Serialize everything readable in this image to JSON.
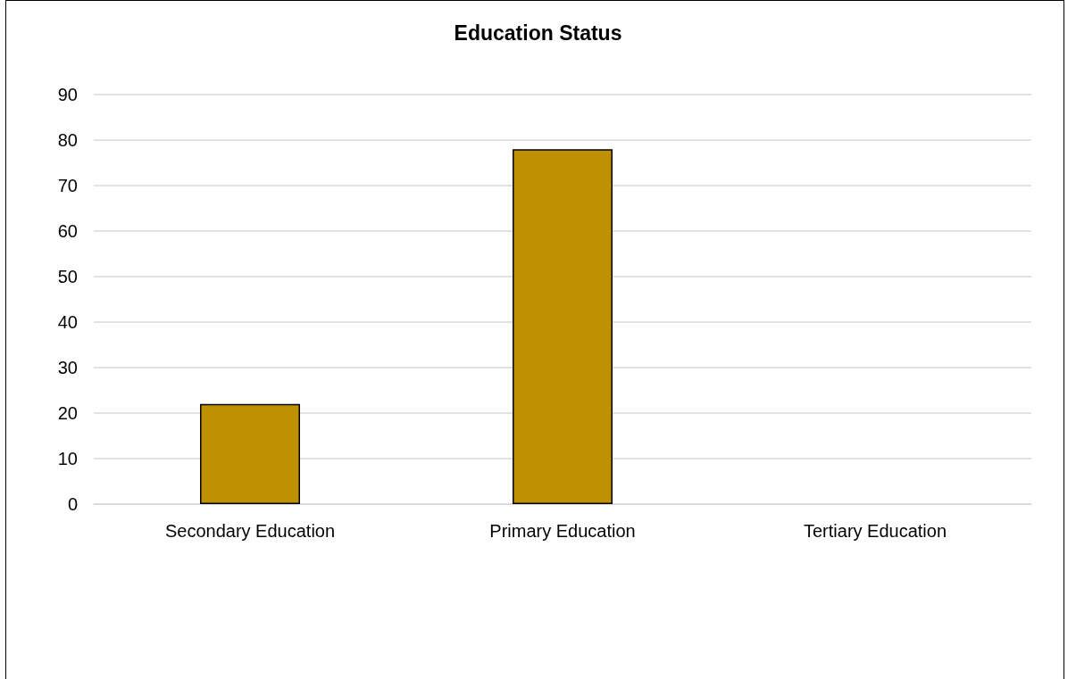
{
  "chart_data": {
    "type": "bar",
    "title": "Education Status",
    "categories": [
      "Secondary Education",
      "Primary Education",
      "Tertiary Education"
    ],
    "values": [
      22,
      78,
      0
    ],
    "color": "#bf9000",
    "ylim": [
      0,
      90
    ],
    "yticks": [
      0,
      10,
      20,
      30,
      40,
      50,
      60,
      70,
      80,
      90
    ],
    "grid": "y"
  }
}
